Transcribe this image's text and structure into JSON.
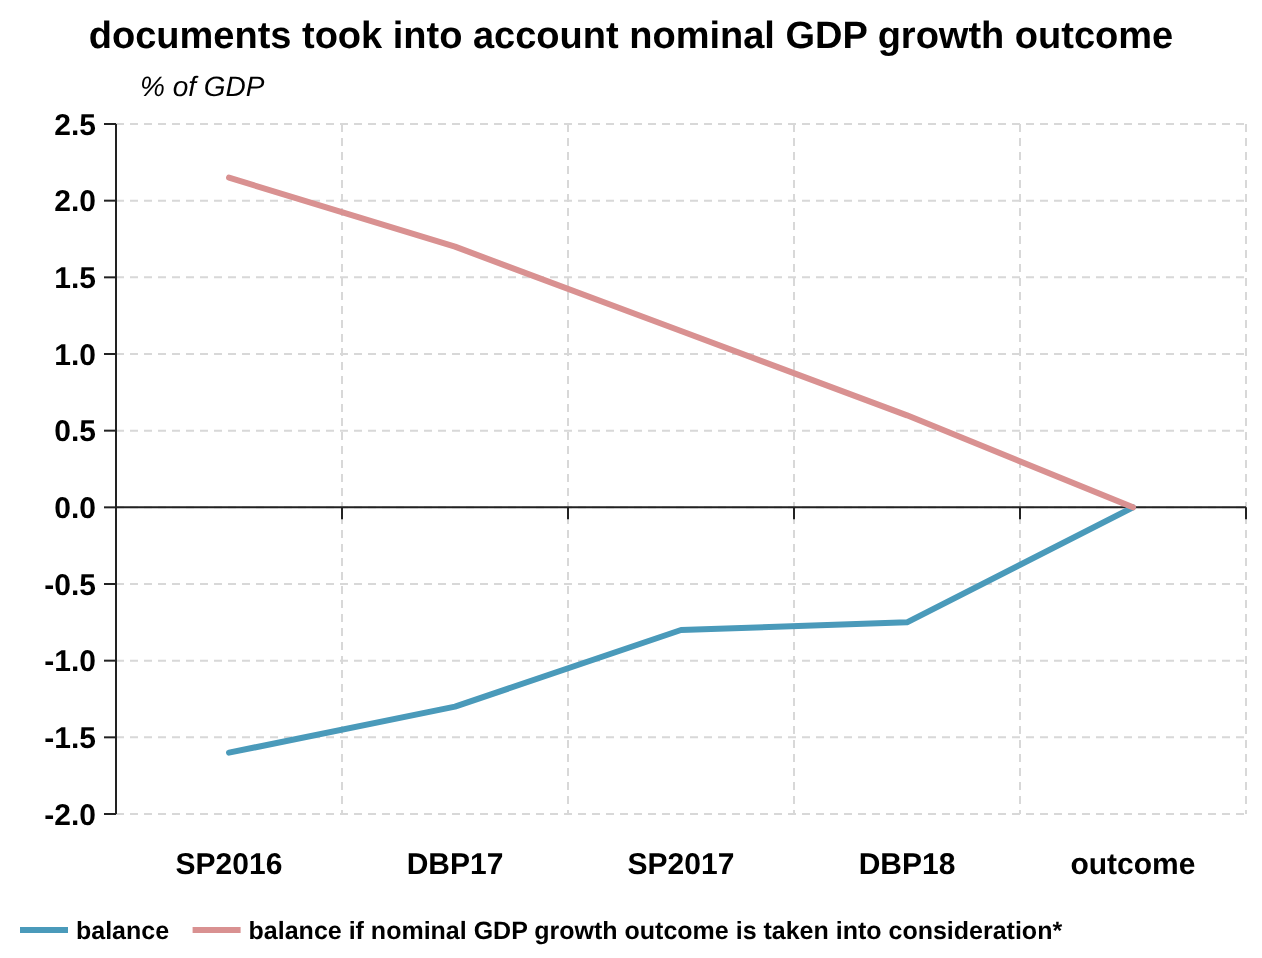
{
  "chart_data": {
    "type": "line",
    "title": "documents took into account nominal GDP growth outcome",
    "ylabel": "% of GDP",
    "categories": [
      "SP2016",
      "DBP17",
      "SP2017",
      "DBP18",
      "outcome"
    ],
    "series": [
      {
        "name": "balance",
        "color": "#4a9aba",
        "values": [
          -1.6,
          -1.3,
          -0.8,
          -0.75,
          0
        ]
      },
      {
        "name": "balance if nominal GDP growth outcome is taken into consideration*",
        "color": "#d99191",
        "values": [
          2.15,
          1.7,
          1.15,
          0.6,
          0
        ]
      }
    ],
    "ylim": [
      -2,
      2.5
    ],
    "yticks": [
      {
        "value": -2,
        "label": "-2.0"
      },
      {
        "value": -1.5,
        "label": "-1.5"
      },
      {
        "value": -1,
        "label": "-1.0"
      },
      {
        "value": -0.5,
        "label": "-0.5"
      },
      {
        "value": 0,
        "label": "0.0"
      },
      {
        "value": 0.5,
        "label": "0.5"
      },
      {
        "value": 1,
        "label": "1.0"
      },
      {
        "value": 1.5,
        "label": "1.5"
      },
      {
        "value": 2,
        "label": "2.0"
      },
      {
        "value": 2.5,
        "label": "2.5"
      }
    ],
    "grid": true,
    "legend": "bottom",
    "marker": "none",
    "line_style": "solid"
  }
}
